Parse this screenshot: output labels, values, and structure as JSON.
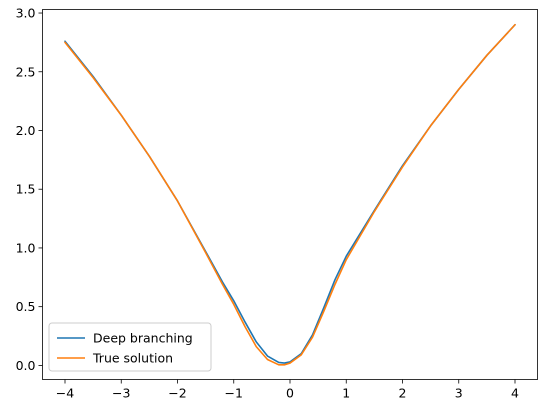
{
  "chart_data": {
    "type": "line",
    "title": "",
    "xlabel": "",
    "ylabel": "",
    "xlim": [
      -4.4,
      4.4
    ],
    "ylim": [
      -0.12,
      3.03
    ],
    "xticks": [
      -4,
      -3,
      -2,
      -1,
      0,
      1,
      2,
      3,
      4
    ],
    "xtick_labels": [
      "−4",
      "−3",
      "−2",
      "−1",
      "0",
      "1",
      "2",
      "3",
      "4"
    ],
    "yticks": [
      0.0,
      0.5,
      1.0,
      1.5,
      2.0,
      2.5,
      3.0
    ],
    "ytick_labels": [
      "0.0",
      "0.5",
      "1.0",
      "1.5",
      "2.0",
      "2.5",
      "3.0"
    ],
    "grid": false,
    "legend_position": "lower-left",
    "series": [
      {
        "name": "Deep branching",
        "color": "#1f77b4",
        "x": [
          -4,
          -3.5,
          -3,
          -2.5,
          -2,
          -1.5,
          -1.2,
          -1,
          -0.8,
          -0.6,
          -0.4,
          -0.2,
          -0.1,
          0,
          0.2,
          0.4,
          0.6,
          0.8,
          1,
          1.5,
          2,
          2.5,
          3,
          3.5,
          4
        ],
        "y": [
          2.76,
          2.46,
          2.13,
          1.78,
          1.4,
          0.97,
          0.71,
          0.55,
          0.37,
          0.2,
          0.08,
          0.025,
          0.02,
          0.03,
          0.1,
          0.26,
          0.49,
          0.73,
          0.93,
          1.32,
          1.7,
          2.04,
          2.35,
          2.64,
          2.9
        ]
      },
      {
        "name": "True solution",
        "color": "#ff7f0e",
        "x": [
          -4,
          -3.5,
          -3,
          -2.5,
          -2,
          -1.5,
          -1.2,
          -1,
          -0.8,
          -0.6,
          -0.4,
          -0.2,
          -0.1,
          0,
          0.2,
          0.4,
          0.6,
          0.8,
          1,
          1.5,
          2,
          2.5,
          3,
          3.5,
          4
        ],
        "y": [
          2.75,
          2.45,
          2.13,
          1.78,
          1.4,
          0.96,
          0.69,
          0.52,
          0.33,
          0.16,
          0.05,
          0.005,
          0.005,
          0.02,
          0.09,
          0.24,
          0.46,
          0.69,
          0.9,
          1.31,
          1.69,
          2.04,
          2.35,
          2.64,
          2.9
        ]
      }
    ]
  }
}
